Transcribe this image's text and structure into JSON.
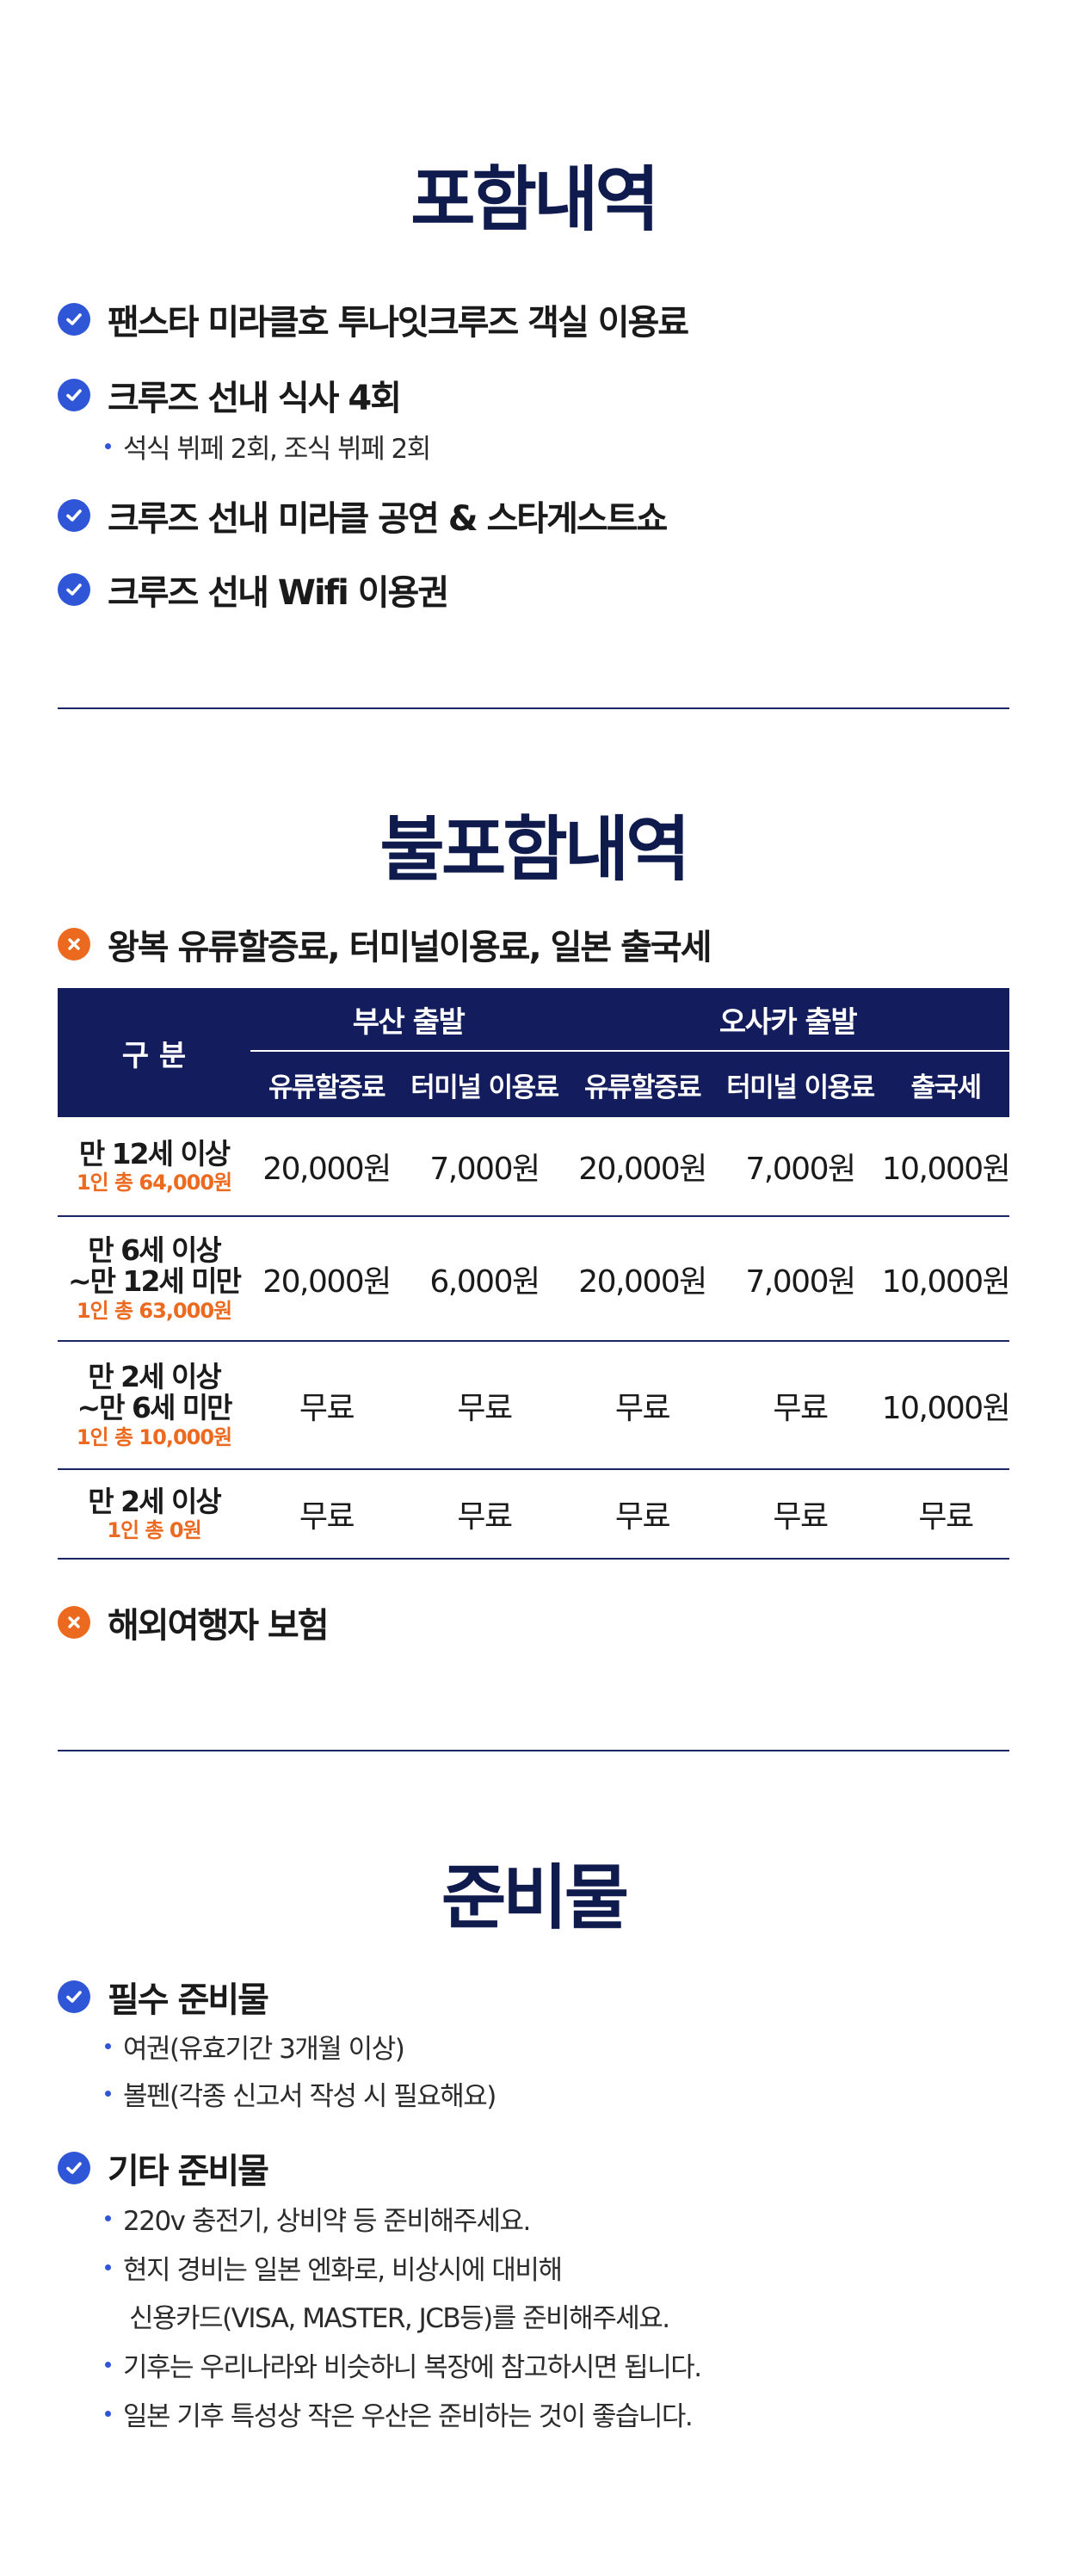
{
  "included": {
    "title": "포함내역",
    "items": [
      "팬스타 미라클호 투나잇크루즈 객실 이용료",
      "크루즈 선내 식사 4회",
      "크루즈 선내 미라클 공연 & 스타게스트쇼",
      "크루즈 선내 Wifi 이용권"
    ],
    "meal_detail": "석식 뷔페 2회, 조식 뷔페 2회"
  },
  "excluded": {
    "title": "불포함내역",
    "item1": "왕복 유류할증료, 터미널이용료, 일본 출국세",
    "item2": "해외여행자 보험",
    "table": {
      "gubun": "구 분",
      "group_busan": "부산 출발",
      "group_osaka": "오사카 출발",
      "sub_headers": [
        "유류할증료",
        "터미널 이용료",
        "유류할증료",
        "터미널 이용료",
        "출국세"
      ],
      "rows": [
        {
          "age_line1": "만 12세 이상",
          "age_line2": "",
          "total": "1인 총 64,000원",
          "values": [
            "20,000원",
            "7,000원",
            "20,000원",
            "7,000원",
            "10,000원"
          ]
        },
        {
          "age_line1": "만 6세 이상",
          "age_line2": "~만 12세 미만",
          "total": "1인 총 63,000원",
          "values": [
            "20,000원",
            "6,000원",
            "20,000원",
            "7,000원",
            "10,000원"
          ]
        },
        {
          "age_line1": "만 2세 이상",
          "age_line2": "~만 6세 미만",
          "total": "1인 총 10,000원",
          "values": [
            "무료",
            "무료",
            "무료",
            "무료",
            "10,000원"
          ]
        },
        {
          "age_line1": "만 2세 이상",
          "age_line2": "",
          "total": "1인 총 0원",
          "values": [
            "무료",
            "무료",
            "무료",
            "무료",
            "무료"
          ]
        }
      ]
    }
  },
  "prep": {
    "title": "준비물",
    "required_title": "필수 준비물",
    "required_items": [
      "여권(유효기간 3개월 이상)",
      "볼펜(각종 신고서 작성 시 필요해요)"
    ],
    "other_title": "기타 준비물",
    "other_items": [
      "220v 충전기, 상비약 등 준비해주세요.",
      "현지 경비는 일본 엔화로, 비상시에 대비해",
      "기후는 우리나라와 비슷하니 복장에 참고하시면 됩니다.",
      "일본 기후 특성상 작은 우산은 준비하는 것이 좋습니다."
    ],
    "other_item2_cont": "신용카드(VISA, MASTER, JCB등)를 준비해주세요."
  },
  "colors": {
    "navy": "#0f1a4d",
    "table_header": "#131c5c",
    "check_blue": "#2f56d6",
    "orange": "#ec6a1f"
  },
  "icons": {
    "check": "check-circle-icon",
    "x": "x-circle-icon"
  }
}
